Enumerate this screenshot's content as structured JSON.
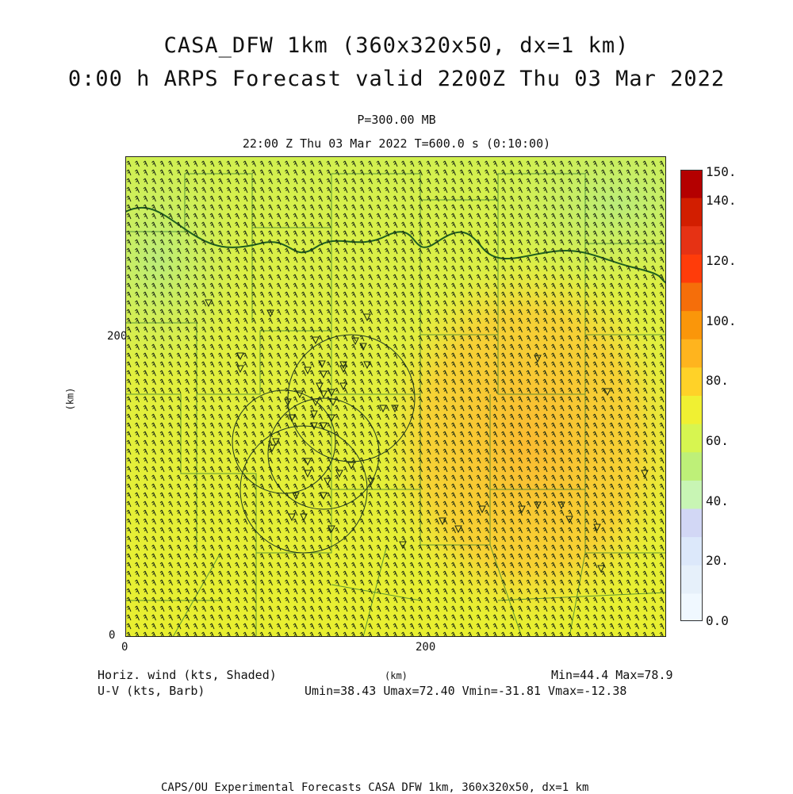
{
  "title_line1": "CASA_DFW 1km (360x320x50, dx=1 km)",
  "title_line2": "0:00 h ARPS Forecast valid 2200Z Thu 03 Mar 2022",
  "pressure_level": "P=300.00 MB",
  "valid_time": "22:00 Z Thu 03 Mar 2022    T=600.0 s (0:10:00)",
  "axes": {
    "x_ticks": [
      "0",
      "200"
    ],
    "y_ticks": [
      "0",
      "200"
    ],
    "x_label": "(km)",
    "y_label": "(km)"
  },
  "colorbar": {
    "labels": [
      "150.",
      "140.",
      "120.",
      "100.",
      "80.",
      "60.",
      "40.",
      "20.",
      "0.0"
    ],
    "colors": [
      "#b40000",
      "#d21e00",
      "#e63214",
      "#ff3c0a",
      "#f56e0a",
      "#fa960a",
      "#ffb41e",
      "#ffd228",
      "#f0f032",
      "#d7f550",
      "#bef078",
      "#c8f5b4",
      "#d2d7f5",
      "#dce8fa",
      "#e6f0fa",
      "#f0f8ff"
    ]
  },
  "legend": {
    "shaded_label": "Horiz. wind (kts, Shaded)",
    "barb_label": "U-V (kts, Barb)",
    "minmax": "Min=44.4 Max=78.9",
    "uv_range": "Umin=38.43 Umax=72.40 Vmin=-31.81 Vmax=-12.38"
  },
  "footer": "CAPS/OU Experimental Forecasts  CASA DFW 1km, 360x320x50, dx=1 km"
}
